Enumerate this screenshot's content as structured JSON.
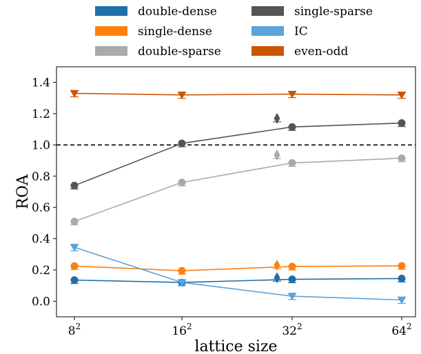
{
  "chart_data": {
    "type": "line",
    "xlabel": "lattice size",
    "ylabel": "ROA",
    "x_categories": [
      "8",
      "16",
      "32",
      "64"
    ],
    "x_exponent": "2",
    "ylim": [
      -0.1,
      1.5
    ],
    "yticks": [
      "0.0",
      "0.2",
      "0.4",
      "0.6",
      "0.8",
      "1.0",
      "1.2",
      "1.4"
    ],
    "reference_line": 1.0,
    "legend_position": "top (outside plot, 2 columns)",
    "series": [
      {
        "name": "double-dense",
        "color": "#1f6fa8",
        "marker": "circle",
        "x": [
          8,
          16,
          32,
          64
        ],
        "values": [
          0.135,
          0.12,
          0.14,
          0.145
        ],
        "extra_point": {
          "x": 32,
          "value": 0.15,
          "marker": "diamond"
        }
      },
      {
        "name": "single-dense",
        "color": "#ff7f0e",
        "marker": "circle",
        "x": [
          8,
          16,
          32,
          64
        ],
        "values": [
          0.225,
          0.195,
          0.222,
          0.226
        ],
        "extra_point": {
          "x": 32,
          "value": 0.23,
          "marker": "diamond"
        }
      },
      {
        "name": "double-sparse",
        "color": "#aaaaaa",
        "marker": "circle",
        "x": [
          8,
          16,
          32,
          64
        ],
        "values": [
          0.51,
          0.76,
          0.885,
          0.915
        ],
        "extra_point": {
          "x": 32,
          "value": 0.935,
          "marker": "diamond"
        }
      },
      {
        "name": "single-sparse",
        "color": "#555555",
        "marker": "circle",
        "x": [
          8,
          16,
          32,
          64
        ],
        "values": [
          0.74,
          1.01,
          1.115,
          1.14
        ],
        "extra_point": {
          "x": 32,
          "value": 1.17,
          "marker": "diamond"
        }
      },
      {
        "name": "IC",
        "color": "#5ba3d9",
        "marker": "triangle-down",
        "x": [
          8,
          16,
          32,
          64
        ],
        "values": [
          0.345,
          0.12,
          0.032,
          0.008
        ]
      },
      {
        "name": "even-odd",
        "color": "#cc5500",
        "marker": "triangle-down",
        "x": [
          8,
          16,
          32,
          64
        ],
        "values": [
          1.33,
          1.32,
          1.325,
          1.32
        ]
      }
    ]
  }
}
